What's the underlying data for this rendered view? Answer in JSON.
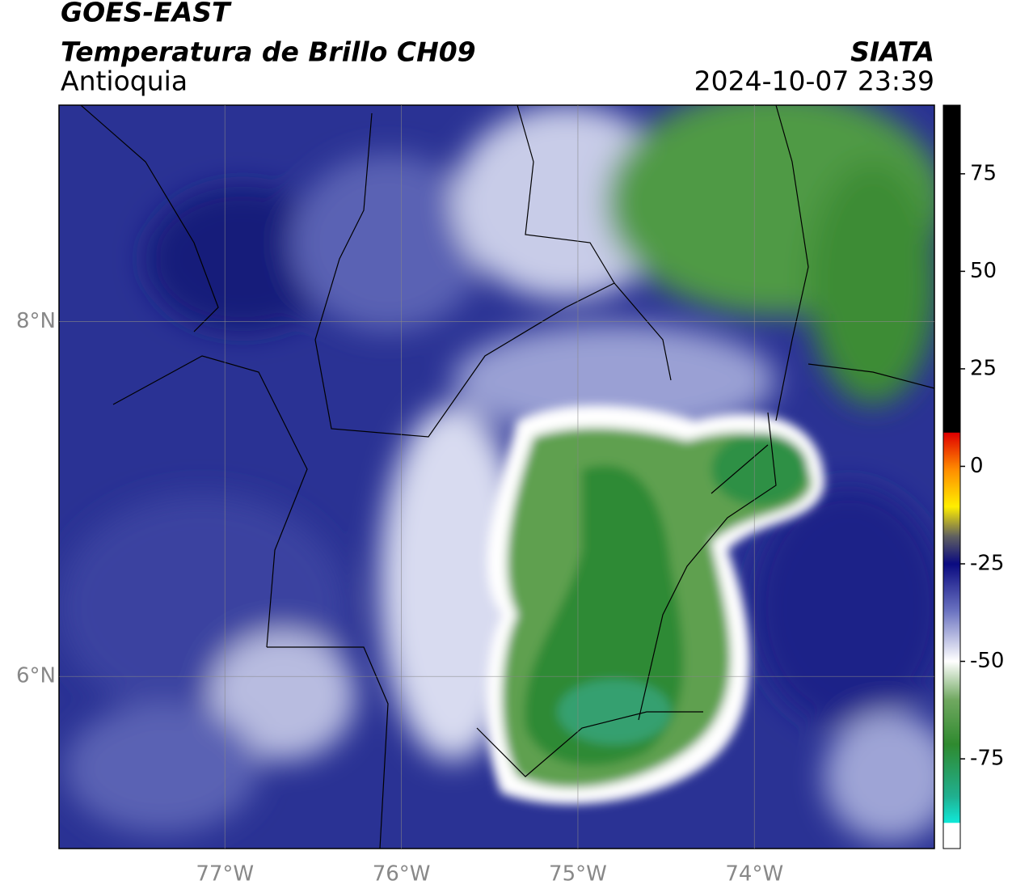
{
  "header": {
    "title": "GOES-EAST",
    "subtitle": "Temperatura de Brillo CH09",
    "region": "Antioquia",
    "source": "SIATA",
    "datetime": "2024-10-07 23:39"
  },
  "map": {
    "xlim": [
      -77.94,
      -72.98
    ],
    "ylim": [
      5.03,
      9.22
    ],
    "xticks": [
      {
        "value": -77,
        "label": "77°W"
      },
      {
        "value": -76,
        "label": "76°W"
      },
      {
        "value": -75,
        "label": "75°W"
      },
      {
        "value": -74,
        "label": "74°W"
      }
    ],
    "yticks": [
      {
        "value": 8,
        "label": "8°N"
      },
      {
        "value": 6,
        "label": "6°N"
      }
    ],
    "grid": true
  },
  "colorbar": {
    "lim": [
      -98,
      92.6
    ],
    "ticks": [
      -75,
      -50,
      -25,
      0,
      25,
      50,
      75
    ]
  }
}
